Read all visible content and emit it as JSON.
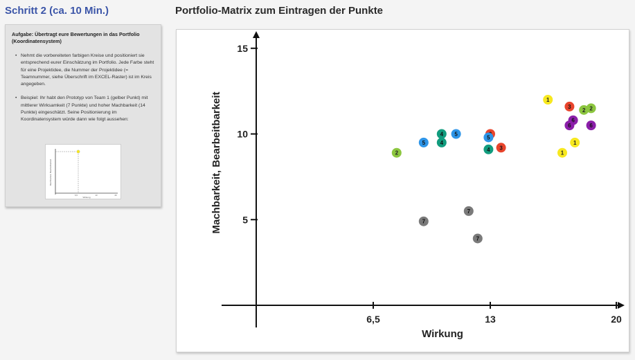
{
  "header": {
    "step_title": "Schritt 2 (ca. 10 Min.)",
    "main_title": "Portfolio-Matrix zum Eintragen der Punkte"
  },
  "task": {
    "heading": "Aufgabe: Übertragt eure Bewertungen in das Portfolio (Koordinatensystem)",
    "bullets": [
      "Nehmt die vorbereiteten farbigen Kreise und positioniert sie entsprechend eurer Einschätzung im Portfolio. Jede Farbe steht für eine Projektidee, die Nummer der Projektidee (= Teamnummer, siehe Überschrift im EXCEL-Raster) ist im Kreis angegeben.",
      "Beispiel: Ihr habt den Prototyp von Team 1 (gelber Punkt) mit mittlerer Wirksamkeit (7 Punkte) und hoher Machbarkeit (14 Punkte) eingeschätzt. Seine Positionierung im Koordinatensystem würde dann wie folgt aussehen:"
    ]
  },
  "colors": {
    "1": "#f7e81f",
    "2": "#8cc63f",
    "3": "#e8442c",
    "4": "#119c7e",
    "5": "#2e95e8",
    "6": "#8b1fa9",
    "7": "#7a7a7a"
  },
  "chart_data": {
    "type": "scatter",
    "title": "",
    "xlabel": "Wirkung",
    "ylabel": "Machbarkeit, Bearbeitbarkeit",
    "xticks": [
      {
        "value": 6.5,
        "label": "6,5"
      },
      {
        "value": 13,
        "label": "13"
      },
      {
        "value": 20,
        "label": "20"
      }
    ],
    "yticks": [
      {
        "value": 5,
        "label": "5"
      },
      {
        "value": 10,
        "label": "10"
      },
      {
        "value": 15,
        "label": "15"
      }
    ],
    "xlim": [
      0,
      20
    ],
    "ylim": [
      0,
      15
    ],
    "points": [
      {
        "team": "1",
        "x": 16.2,
        "y": 12.0
      },
      {
        "team": "1",
        "x": 17.7,
        "y": 9.5
      },
      {
        "team": "1",
        "x": 17.0,
        "y": 8.9
      },
      {
        "team": "2",
        "x": 7.8,
        "y": 8.9
      },
      {
        "team": "2",
        "x": 18.2,
        "y": 11.4
      },
      {
        "team": "2",
        "x": 18.6,
        "y": 11.5
      },
      {
        "team": "3",
        "x": 13.0,
        "y": 10.0
      },
      {
        "team": "3",
        "x": 13.6,
        "y": 9.2
      },
      {
        "team": "3",
        "x": 17.4,
        "y": 11.6
      },
      {
        "team": "4",
        "x": 10.3,
        "y": 10.0
      },
      {
        "team": "4",
        "x": 10.3,
        "y": 9.5
      },
      {
        "team": "4",
        "x": 12.9,
        "y": 9.1
      },
      {
        "team": "5",
        "x": 9.3,
        "y": 9.5
      },
      {
        "team": "5",
        "x": 11.1,
        "y": 10.0
      },
      {
        "team": "5",
        "x": 12.9,
        "y": 9.8
      },
      {
        "team": "6",
        "x": 17.6,
        "y": 10.8
      },
      {
        "team": "6",
        "x": 17.4,
        "y": 10.5
      },
      {
        "team": "6",
        "x": 18.6,
        "y": 10.5
      },
      {
        "team": "7",
        "x": 9.3,
        "y": 4.9
      },
      {
        "team": "7",
        "x": 11.8,
        "y": 5.5
      },
      {
        "team": "7",
        "x": 12.3,
        "y": 3.9
      }
    ]
  },
  "example_chart": {
    "ylabel": "Machbarkeit, Bearbeitbarkeit",
    "xlabel": "Wirkung",
    "xticks": [
      "6,5",
      "13",
      "20"
    ],
    "point_team": "1",
    "point_x": 7,
    "point_y": 14
  }
}
